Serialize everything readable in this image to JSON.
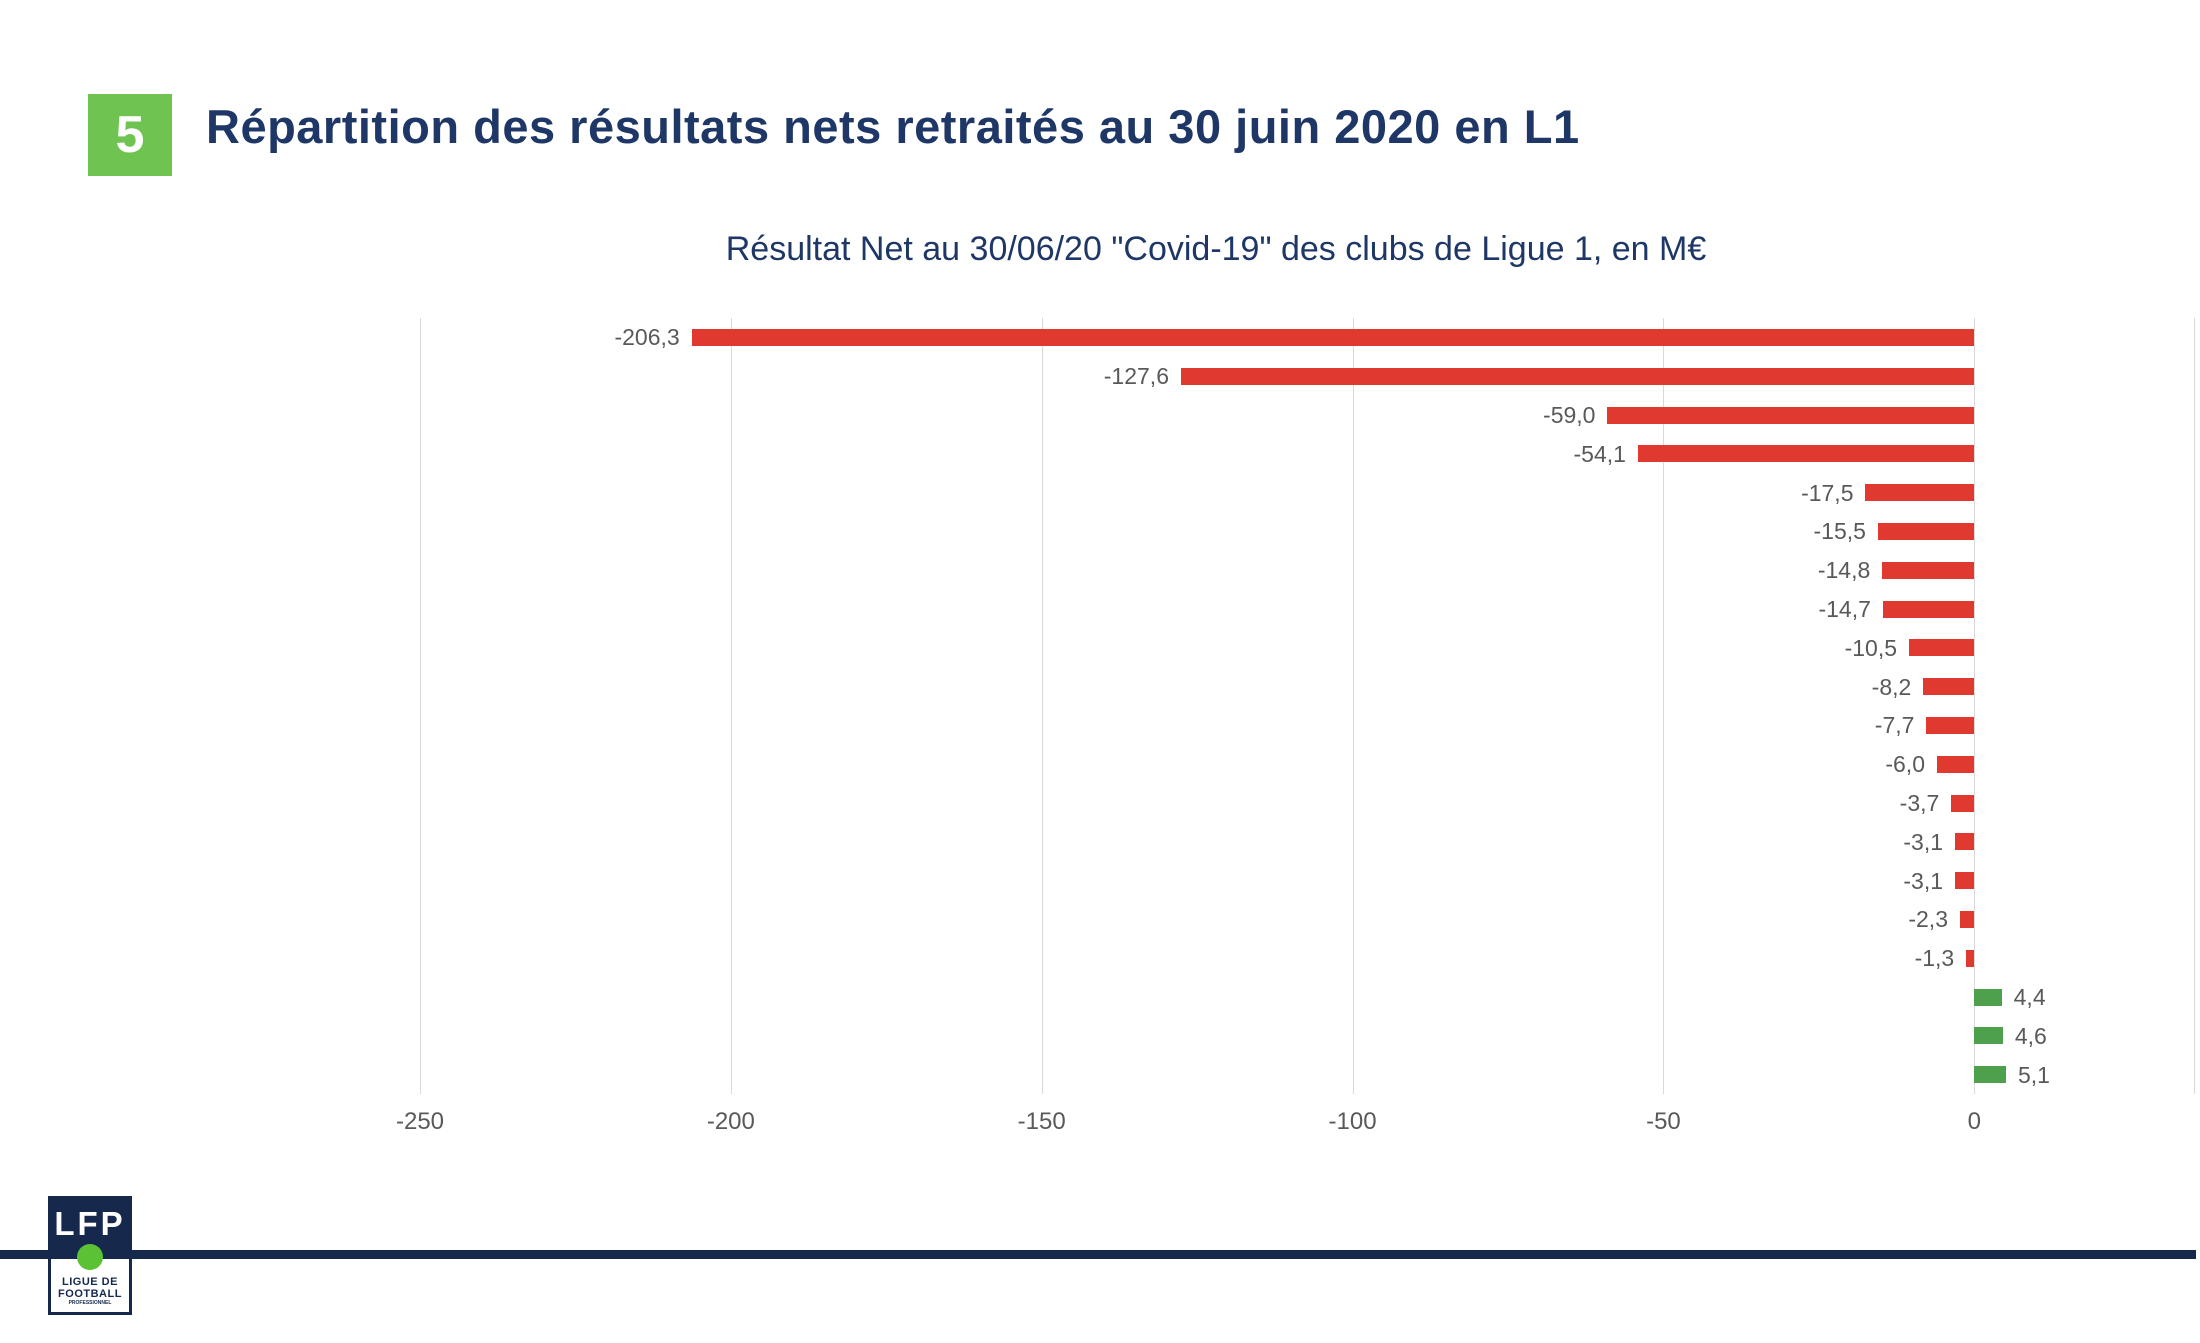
{
  "slide": {
    "section_number": "5",
    "title": "Répartition des résultats nets retraités au 30 juin 2020 en L1"
  },
  "chart_data": {
    "type": "bar",
    "orientation": "horizontal",
    "title": "Résultat Net au 30/06/20 \"Covid-19\" des clubs de Ligue 1, en M€",
    "unit": "M€",
    "values": [
      -206.3,
      -127.6,
      -59.0,
      -54.1,
      -17.5,
      -15.5,
      -14.8,
      -14.7,
      -10.5,
      -8.2,
      -7.7,
      -6.0,
      -3.7,
      -3.1,
      -3.1,
      -2.3,
      -1.3,
      4.4,
      4.6,
      5.1
    ],
    "labels": [
      "-206,3",
      "-127,6",
      "-59,0",
      "-54,1",
      "-17,5",
      "-15,5",
      "-14,8",
      "-14,7",
      "-10,5",
      "-8,2",
      "-7,7",
      "-6,0",
      "-3,7",
      "-3,1",
      "-3,1",
      "-2,3",
      "-1,3",
      "4,4",
      "4,6",
      "5,1"
    ],
    "x_tick_values": [
      -250,
      -200,
      -150,
      -100,
      -50,
      0
    ],
    "x_tick_labels": [
      "-250",
      "-200",
      "-150",
      "-100",
      "-50",
      "0"
    ],
    "xlim": [
      -250,
      35.5
    ],
    "grid": "vertical",
    "legend": "none",
    "data_labels": "outside-end"
  },
  "footer": {
    "logo_text": "LFP",
    "logo_line1": "LIGUE DE",
    "logo_line2": "FOOTBALL",
    "logo_line3": "PROFESSIONNEL"
  },
  "colors": {
    "navy": "#1e3766",
    "footer_navy": "#16294d",
    "badge_green": "#6ec351",
    "ball_green": "#5bc236",
    "negative_bar": "#e03a30",
    "positive_bar": "#4fa04d",
    "gridline": "#d9d9d9",
    "label_gray": "#595959"
  }
}
